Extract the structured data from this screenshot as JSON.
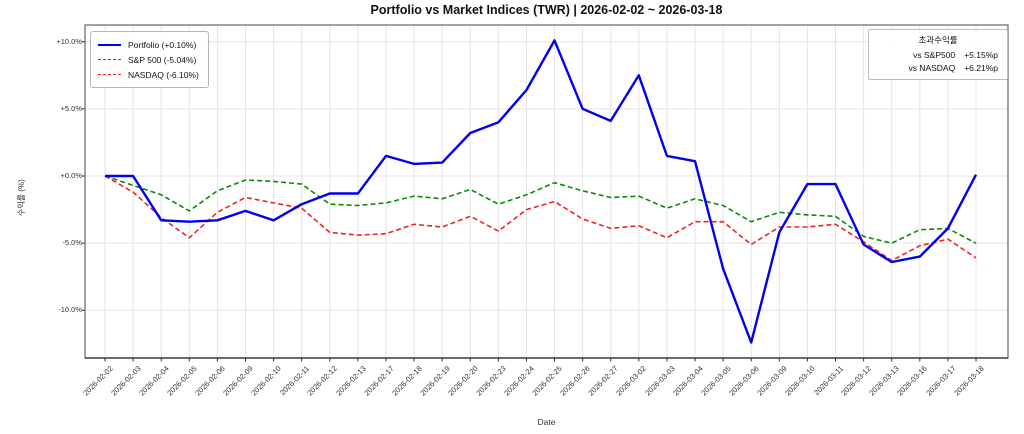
{
  "chart": {
    "title": "Portfolio vs Market Indices (TWR) | 2026-02-02 ~ 2026-03-18",
    "xlabel": "Date",
    "ylabel": "수익률 (%)",
    "excess_box": {
      "title": "초과수익률",
      "rows": [
        {
          "label": "vs S&P500",
          "value": "+5.15%p"
        },
        {
          "label": "vs NASDAQ",
          "value": "+6.21%p"
        }
      ]
    }
  },
  "chart_data": {
    "type": "line",
    "title": "Portfolio vs Market Indices (TWR) | 2026-02-02 ~ 2026-03-18",
    "xlabel": "Date",
    "ylabel": "수익률 (%)",
    "grid": true,
    "legend_position": "upper left",
    "ylim": [
      -13.5,
      11.2
    ],
    "y_ticks": [
      {
        "value": 10,
        "label": "+10.0%"
      },
      {
        "value": 5,
        "label": "+5.0%"
      },
      {
        "value": 0,
        "label": "+0.0%"
      },
      {
        "value": -5,
        "label": "-5.0%"
      },
      {
        "value": -10,
        "label": "-10.0%"
      }
    ],
    "categories": [
      "2026-02-02",
      "2026-02-03",
      "2026-02-04",
      "2026-02-05",
      "2026-02-06",
      "2026-02-09",
      "2026-02-10",
      "2026-02-11",
      "2026-02-12",
      "2026-02-13",
      "2026-02-17",
      "2026-02-18",
      "2026-02-19",
      "2026-02-20",
      "2026-02-23",
      "2026-02-24",
      "2026-02-25",
      "2026-02-26",
      "2026-02-27",
      "2026-03-02",
      "2026-03-03",
      "2026-03-04",
      "2026-03-05",
      "2026-03-06",
      "2026-03-09",
      "2026-03-10",
      "2026-03-11",
      "2026-03-12",
      "2026-03-13",
      "2026-03-16",
      "2026-03-17",
      "2026-03-18"
    ],
    "series": [
      {
        "name": "Portfolio",
        "legend_label": "Portfolio (+0.10%)",
        "total_return_pct": 0.1,
        "color": "#0000ee",
        "style": "solid",
        "line_width": 2.4,
        "values": [
          0.0,
          0.0,
          -3.3,
          -3.4,
          -3.3,
          -2.6,
          -3.3,
          -2.1,
          -1.3,
          -1.3,
          1.5,
          0.9,
          1.0,
          3.2,
          4.0,
          6.4,
          10.1,
          5.0,
          4.1,
          7.5,
          1.5,
          1.1,
          -6.9,
          -12.4,
          -4.2,
          -0.6,
          -0.6,
          -5.1,
          -6.4,
          -6.0,
          -3.9,
          0.1
        ]
      },
      {
        "name": "S&P 500",
        "legend_label": "S&P 500 (-5.04%)",
        "total_return_pct": -5.04,
        "color": "#0a8a0a",
        "style": "dashed",
        "line_width": 1.6,
        "values": [
          0.0,
          -0.7,
          -1.4,
          -2.6,
          -1.1,
          -0.3,
          -0.4,
          -0.6,
          -2.1,
          -2.2,
          -2.0,
          -1.5,
          -1.7,
          -1.0,
          -2.1,
          -1.4,
          -0.5,
          -1.1,
          -1.6,
          -1.5,
          -2.4,
          -1.7,
          -2.2,
          -3.4,
          -2.7,
          -2.9,
          -3.0,
          -4.5,
          -5.0,
          -4.0,
          -3.9,
          -5.0
        ]
      },
      {
        "name": "NASDAQ",
        "legend_label": "NASDAQ (-6.10%)",
        "total_return_pct": -6.1,
        "color": "#f22222",
        "style": "dashed",
        "line_width": 1.6,
        "values": [
          0.0,
          -1.2,
          -3.1,
          -4.6,
          -2.7,
          -1.6,
          -2.0,
          -2.4,
          -4.2,
          -4.4,
          -4.3,
          -3.6,
          -3.8,
          -3.0,
          -4.1,
          -2.5,
          -1.9,
          -3.2,
          -3.9,
          -3.7,
          -4.6,
          -3.4,
          -3.4,
          -5.1,
          -3.8,
          -3.8,
          -3.6,
          -4.9,
          -6.3,
          -5.2,
          -4.7,
          -6.1
        ]
      }
    ],
    "annotations": {
      "excess_return_box": {
        "title": "초과수익률",
        "vs_sp500": "+5.15%p",
        "vs_nasdaq": "+6.21%p"
      }
    }
  }
}
